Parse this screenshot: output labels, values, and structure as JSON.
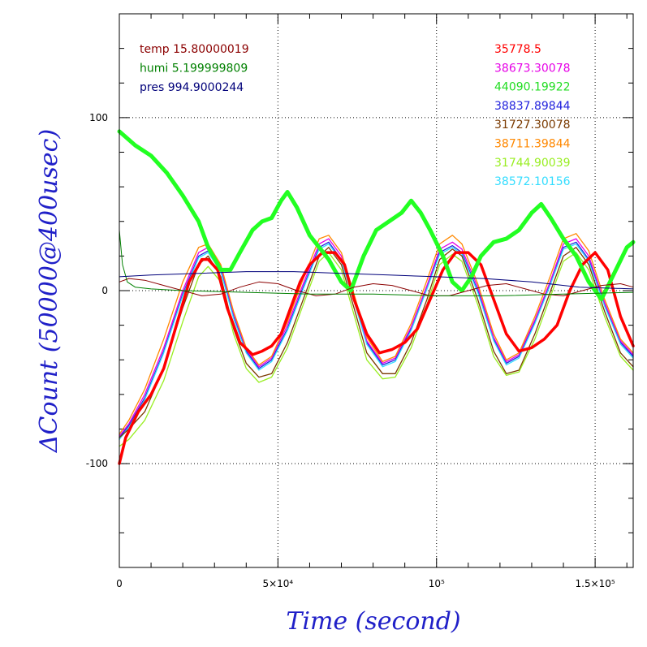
{
  "chart_data": {
    "type": "line",
    "xlabel": "Time (second)",
    "ylabel": "ΔCount (50000@400usec)",
    "xlim": [
      0,
      162000
    ],
    "ylim": [
      -160,
      160
    ],
    "x_ticks": [
      {
        "value": 0,
        "label": "0"
      },
      {
        "value": 50000,
        "label": "5×10⁴"
      },
      {
        "value": 100000,
        "label": "10⁵"
      },
      {
        "value": 150000,
        "label": "1.5×10⁵"
      }
    ],
    "y_ticks": [
      {
        "value": -100,
        "label": "-100"
      },
      {
        "value": 0,
        "label": "0"
      },
      {
        "value": 100,
        "label": "100"
      }
    ],
    "grid": true,
    "env_legend": [
      {
        "text": "temp 15.80000019",
        "color": "#8b0000"
      },
      {
        "text": "humi 5.199999809",
        "color": "#008000"
      },
      {
        "text": "pres 994.9000244",
        "color": "#00007a"
      }
    ],
    "count_legend": [
      {
        "text": "35778.5",
        "color": "#ff0000"
      },
      {
        "text": "38673.30078",
        "color": "#e600e6"
      },
      {
        "text": "44090.19922",
        "color": "#22dd22"
      },
      {
        "text": "38837.89844",
        "color": "#2222dd"
      },
      {
        "text": "31727.30078",
        "color": "#7a3a00"
      },
      {
        "text": "38711.39844",
        "color": "#ff8800"
      },
      {
        "text": "31744.90039",
        "color": "#99ee22"
      },
      {
        "text": "38572.10156",
        "color": "#33ddff"
      }
    ],
    "series": [
      {
        "color": "#2222dd",
        "width": 1.3,
        "x": [
          0,
          3000,
          8000,
          14000,
          20000,
          25000,
          28000,
          32000,
          36000,
          40000,
          44000,
          48000,
          53000,
          58000,
          63000,
          66000,
          70000,
          74000,
          78000,
          83000,
          87000,
          92000,
          97000,
          101000,
          105000,
          108000,
          113000,
          118000,
          122000,
          126000,
          131000,
          136000,
          140000,
          144000,
          148000,
          153000,
          158000,
          162000
        ],
        "y": [
          -85,
          -78,
          -62,
          -35,
          -2,
          20,
          23,
          12,
          -15,
          -35,
          -45,
          -40,
          -22,
          2,
          25,
          28,
          18,
          -5,
          -30,
          -43,
          -40,
          -22,
          2,
          22,
          26,
          22,
          0,
          -28,
          -42,
          -38,
          -18,
          5,
          25,
          28,
          18,
          -8,
          -30,
          -38
        ]
      },
      {
        "color": "#e600e6",
        "width": 1.3,
        "x": [
          0,
          3000,
          8000,
          14000,
          20000,
          25000,
          28000,
          32000,
          36000,
          40000,
          44000,
          48000,
          53000,
          58000,
          63000,
          66000,
          70000,
          74000,
          78000,
          83000,
          87000,
          92000,
          97000,
          101000,
          105000,
          108000,
          113000,
          118000,
          122000,
          126000,
          131000,
          136000,
          140000,
          144000,
          148000,
          153000,
          158000,
          162000
        ],
        "y": [
          -84,
          -77,
          -60,
          -33,
          0,
          22,
          25,
          14,
          -13,
          -34,
          -44,
          -39,
          -20,
          4,
          27,
          30,
          20,
          -4,
          -29,
          -42,
          -39,
          -21,
          3,
          24,
          28,
          24,
          2,
          -27,
          -41,
          -37,
          -17,
          6,
          27,
          30,
          20,
          -7,
          -29,
          -37
        ]
      },
      {
        "color": "#33ddff",
        "width": 1.3,
        "x": [
          0,
          3000,
          8000,
          14000,
          20000,
          25000,
          28000,
          32000,
          36000,
          40000,
          44000,
          48000,
          53000,
          58000,
          63000,
          66000,
          70000,
          74000,
          78000,
          83000,
          87000,
          92000,
          97000,
          101000,
          105000,
          108000,
          113000,
          118000,
          122000,
          126000,
          131000,
          136000,
          140000,
          144000,
          148000,
          153000,
          158000,
          162000
        ],
        "y": [
          -86,
          -79,
          -63,
          -36,
          -3,
          19,
          22,
          11,
          -16,
          -36,
          -46,
          -41,
          -23,
          1,
          24,
          27,
          17,
          -6,
          -31,
          -44,
          -41,
          -23,
          1,
          21,
          25,
          21,
          -1,
          -29,
          -43,
          -39,
          -19,
          4,
          24,
          27,
          17,
          -9,
          -31,
          -39
        ]
      },
      {
        "color": "#ff8800",
        "width": 1.3,
        "x": [
          0,
          3000,
          8000,
          14000,
          20000,
          25000,
          28000,
          32000,
          36000,
          40000,
          44000,
          48000,
          53000,
          58000,
          63000,
          66000,
          70000,
          74000,
          78000,
          83000,
          87000,
          92000,
          97000,
          101000,
          105000,
          108000,
          113000,
          118000,
          122000,
          126000,
          131000,
          136000,
          140000,
          144000,
          148000,
          153000,
          158000,
          162000
        ],
        "y": [
          -83,
          -75,
          -57,
          -28,
          5,
          25,
          27,
          15,
          -12,
          -33,
          -43,
          -38,
          -18,
          7,
          30,
          32,
          22,
          -2,
          -27,
          -41,
          -38,
          -19,
          6,
          27,
          32,
          27,
          4,
          -25,
          -40,
          -36,
          -15,
          9,
          30,
          33,
          23,
          -5,
          -28,
          -36
        ]
      },
      {
        "color": "#7a3a00",
        "width": 1.3,
        "x": [
          0,
          3000,
          8000,
          14000,
          20000,
          25000,
          28000,
          32000,
          36000,
          40000,
          44000,
          48000,
          53000,
          58000,
          63000,
          66000,
          70000,
          74000,
          78000,
          83000,
          87000,
          92000,
          97000,
          101000,
          105000,
          108000,
          113000,
          118000,
          122000,
          126000,
          131000,
          136000,
          140000,
          144000,
          148000,
          153000,
          158000,
          162000
        ],
        "y": [
          -85,
          -80,
          -70,
          -45,
          -10,
          15,
          20,
          8,
          -22,
          -42,
          -50,
          -48,
          -30,
          -5,
          20,
          25,
          15,
          -10,
          -36,
          -48,
          -48,
          -30,
          -5,
          18,
          24,
          20,
          -5,
          -35,
          -48,
          -46,
          -25,
          0,
          20,
          25,
          15,
          -12,
          -36,
          -44
        ]
      },
      {
        "color": "#99ee22",
        "width": 1.3,
        "x": [
          0,
          3000,
          8000,
          14000,
          20000,
          25000,
          28000,
          32000,
          36000,
          40000,
          44000,
          48000,
          53000,
          58000,
          63000,
          66000,
          70000,
          74000,
          78000,
          83000,
          87000,
          92000,
          97000,
          101000,
          105000,
          108000,
          113000,
          118000,
          122000,
          126000,
          131000,
          136000,
          140000,
          144000,
          148000,
          153000,
          158000,
          162000
        ],
        "y": [
          -90,
          -86,
          -75,
          -52,
          -18,
          8,
          14,
          5,
          -25,
          -45,
          -53,
          -50,
          -33,
          -8,
          17,
          22,
          12,
          -14,
          -40,
          -51,
          -50,
          -33,
          -8,
          15,
          21,
          17,
          -8,
          -38,
          -49,
          -47,
          -28,
          -3,
          17,
          22,
          12,
          -15,
          -38,
          -46
        ]
      },
      {
        "color": "#ff0000",
        "width": 3.5,
        "x": [
          0,
          2000,
          6000,
          10000,
          14000,
          18000,
          22000,
          26000,
          28000,
          31000,
          34000,
          38000,
          42000,
          45000,
          48000,
          51000,
          54000,
          57000,
          60000,
          64000,
          68000,
          71000,
          74000,
          78000,
          82000,
          86000,
          90000,
          94000,
          98000,
          102000,
          106000,
          110000,
          114000,
          118000,
          122000,
          126000,
          130000,
          134000,
          138000,
          142000,
          146000,
          150000,
          154000,
          158000,
          162000
        ],
        "y": [
          -100,
          -85,
          -70,
          -60,
          -45,
          -20,
          5,
          18,
          18,
          12,
          -10,
          -30,
          -37,
          -35,
          -32,
          -25,
          -10,
          5,
          15,
          22,
          22,
          15,
          -5,
          -25,
          -36,
          -34,
          -30,
          -22,
          -5,
          12,
          22,
          22,
          15,
          -5,
          -25,
          -35,
          -33,
          -28,
          -20,
          0,
          15,
          22,
          12,
          -15,
          -32
        ]
      },
      {
        "color": "#22ff22",
        "width": 5,
        "x": [
          0,
          5000,
          10000,
          15000,
          20000,
          25000,
          28000,
          32000,
          35000,
          38000,
          42000,
          45000,
          48000,
          51000,
          53000,
          56000,
          60000,
          63000,
          66000,
          70000,
          73000,
          77000,
          81000,
          85000,
          89000,
          92000,
          95000,
          98000,
          102000,
          105000,
          108000,
          111000,
          114000,
          118000,
          122000,
          126000,
          130000,
          133000,
          136000,
          140000,
          144000,
          148000,
          152000,
          156000,
          160000,
          162000
        ],
        "y": [
          92,
          84,
          78,
          68,
          55,
          40,
          25,
          12,
          12,
          22,
          35,
          40,
          42,
          52,
          57,
          48,
          32,
          25,
          18,
          5,
          0,
          20,
          35,
          40,
          45,
          52,
          45,
          35,
          20,
          5,
          0,
          8,
          20,
          28,
          30,
          35,
          45,
          50,
          42,
          30,
          20,
          5,
          -5,
          10,
          25,
          28
        ]
      },
      {
        "color": "#8b0000",
        "width": 1,
        "x": [
          0,
          3000,
          8000,
          14000,
          20000,
          26000,
          32000,
          38000,
          44000,
          50000,
          56000,
          62000,
          68000,
          74000,
          80000,
          86000,
          92000,
          98000,
          104000,
          110000,
          116000,
          122000,
          128000,
          134000,
          140000,
          146000,
          152000,
          158000,
          162000
        ],
        "y": [
          5,
          7,
          6,
          3,
          0,
          -3,
          -2,
          2,
          5,
          4,
          0,
          -3,
          -2,
          2,
          4,
          3,
          0,
          -3,
          -3,
          0,
          3,
          4,
          1,
          -2,
          -3,
          0,
          3,
          4,
          2
        ]
      },
      {
        "color": "#008000",
        "width": 1,
        "x": [
          0,
          1000,
          2500,
          5000,
          10000,
          20000,
          40000,
          60000,
          80000,
          100000,
          120000,
          140000,
          162000
        ],
        "y": [
          35,
          15,
          5,
          2,
          1,
          0,
          -1,
          -2,
          -2,
          -3,
          -3,
          -2,
          -1
        ]
      },
      {
        "color": "#00007a",
        "width": 1,
        "x": [
          0,
          10000,
          25000,
          40000,
          55000,
          70000,
          85000,
          100000,
          115000,
          130000,
          145000,
          162000
        ],
        "y": [
          8,
          9,
          10,
          11,
          11,
          10,
          9,
          8,
          7,
          5,
          2,
          1
        ]
      }
    ]
  }
}
